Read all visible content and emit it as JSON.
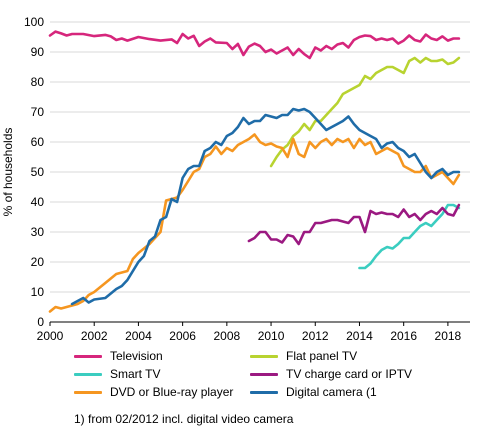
{
  "chart_data": {
    "type": "line",
    "ylabel": "% of households",
    "xlim": [
      2000,
      2019
    ],
    "ylim": [
      0,
      100
    ],
    "x_ticks": [
      2000,
      2002,
      2004,
      2006,
      2008,
      2010,
      2012,
      2014,
      2016,
      2018
    ],
    "y_ticks": [
      0,
      10,
      20,
      30,
      40,
      50,
      60,
      70,
      80,
      90,
      100
    ],
    "grid": "horizontal",
    "legend_position": "bottom",
    "footnote": "1) from 02/2012 incl. digital video camera",
    "series": [
      {
        "name": "Television",
        "color": "#d6267c",
        "points": [
          [
            2000,
            95.5
          ],
          [
            2000.25,
            96.8
          ],
          [
            2000.5,
            96.2
          ],
          [
            2000.75,
            95.5
          ],
          [
            2001,
            96
          ],
          [
            2001.5,
            96
          ],
          [
            2002,
            95.3
          ],
          [
            2002.5,
            95.7
          ],
          [
            2002.75,
            95.2
          ],
          [
            2003,
            94
          ],
          [
            2003.25,
            94.5
          ],
          [
            2003.5,
            93.8
          ],
          [
            2004,
            95
          ],
          [
            2004.5,
            94.3
          ],
          [
            2005,
            93.8
          ],
          [
            2005.5,
            94.2
          ],
          [
            2005.75,
            93
          ],
          [
            2006,
            96
          ],
          [
            2006.25,
            94.5
          ],
          [
            2006.5,
            95.4
          ],
          [
            2006.75,
            92
          ],
          [
            2007,
            93.5
          ],
          [
            2007.25,
            94.5
          ],
          [
            2007.5,
            93.2
          ],
          [
            2008,
            93
          ],
          [
            2008.25,
            91
          ],
          [
            2008.5,
            92.7
          ],
          [
            2008.75,
            89
          ],
          [
            2009,
            91.8
          ],
          [
            2009.25,
            92.8
          ],
          [
            2009.5,
            92
          ],
          [
            2009.75,
            90
          ],
          [
            2010,
            90.8
          ],
          [
            2010.25,
            89.5
          ],
          [
            2010.5,
            90.5
          ],
          [
            2010.75,
            91.5
          ],
          [
            2011,
            89
          ],
          [
            2011.25,
            91
          ],
          [
            2011.5,
            89.3
          ],
          [
            2011.75,
            88
          ],
          [
            2012,
            91.5
          ],
          [
            2012.25,
            90.5
          ],
          [
            2012.5,
            92
          ],
          [
            2012.75,
            91
          ],
          [
            2013,
            92.5
          ],
          [
            2013.25,
            93
          ],
          [
            2013.5,
            91.5
          ],
          [
            2013.75,
            94
          ],
          [
            2014,
            95
          ],
          [
            2014.25,
            95.5
          ],
          [
            2014.5,
            95.3
          ],
          [
            2014.75,
            94
          ],
          [
            2015,
            94.5
          ],
          [
            2015.25,
            94
          ],
          [
            2015.5,
            94.5
          ],
          [
            2015.75,
            92.8
          ],
          [
            2016,
            93.8
          ],
          [
            2016.25,
            95.5
          ],
          [
            2016.5,
            94
          ],
          [
            2016.75,
            93.5
          ],
          [
            2017,
            95.8
          ],
          [
            2017.25,
            94.5
          ],
          [
            2017.5,
            94
          ],
          [
            2017.75,
            95.2
          ],
          [
            2018,
            93.8
          ],
          [
            2018.25,
            94.5
          ],
          [
            2018.5,
            94.5
          ]
        ]
      },
      {
        "name": "Flat panel TV",
        "color": "#b8d330",
        "points": [
          [
            2010,
            52
          ],
          [
            2010.25,
            55
          ],
          [
            2010.5,
            57.5
          ],
          [
            2010.75,
            59
          ],
          [
            2011,
            62
          ],
          [
            2011.25,
            63.5
          ],
          [
            2011.5,
            66
          ],
          [
            2011.75,
            64
          ],
          [
            2012,
            67
          ],
          [
            2012.25,
            67
          ],
          [
            2012.5,
            69
          ],
          [
            2012.75,
            71
          ],
          [
            2013,
            73
          ],
          [
            2013.25,
            76
          ],
          [
            2013.5,
            77
          ],
          [
            2013.75,
            78
          ],
          [
            2014,
            79
          ],
          [
            2014.25,
            82
          ],
          [
            2014.5,
            81
          ],
          [
            2014.75,
            83
          ],
          [
            2015,
            84
          ],
          [
            2015.25,
            85
          ],
          [
            2015.5,
            85
          ],
          [
            2015.75,
            84
          ],
          [
            2016,
            83
          ],
          [
            2016.25,
            87
          ],
          [
            2016.5,
            88
          ],
          [
            2016.75,
            86.5
          ],
          [
            2017,
            88
          ],
          [
            2017.25,
            87
          ],
          [
            2017.5,
            87
          ],
          [
            2017.75,
            87.5
          ],
          [
            2018,
            86
          ],
          [
            2018.25,
            86.5
          ],
          [
            2018.5,
            88
          ]
        ]
      },
      {
        "name": "Smart TV",
        "color": "#3bcdc0",
        "points": [
          [
            2014,
            18
          ],
          [
            2014.25,
            18
          ],
          [
            2014.5,
            19.5
          ],
          [
            2014.75,
            22
          ],
          [
            2015,
            24
          ],
          [
            2015.25,
            25
          ],
          [
            2015.5,
            24.5
          ],
          [
            2015.75,
            26
          ],
          [
            2016,
            28
          ],
          [
            2016.25,
            28
          ],
          [
            2016.5,
            30
          ],
          [
            2016.75,
            32
          ],
          [
            2017,
            33
          ],
          [
            2017.25,
            32
          ],
          [
            2017.5,
            34
          ],
          [
            2017.75,
            36
          ],
          [
            2018,
            39
          ],
          [
            2018.25,
            39
          ],
          [
            2018.5,
            38
          ]
        ]
      },
      {
        "name": "TV charge card or IPTV",
        "color": "#9b1981",
        "points": [
          [
            2009,
            27
          ],
          [
            2009.25,
            28
          ],
          [
            2009.5,
            30
          ],
          [
            2009.75,
            30
          ],
          [
            2010,
            27.5
          ],
          [
            2010.25,
            27.5
          ],
          [
            2010.5,
            26.5
          ],
          [
            2010.75,
            29
          ],
          [
            2011,
            28.5
          ],
          [
            2011.25,
            26
          ],
          [
            2011.5,
            30
          ],
          [
            2011.75,
            30
          ],
          [
            2012,
            33
          ],
          [
            2012.25,
            33
          ],
          [
            2012.5,
            33.5
          ],
          [
            2012.75,
            34
          ],
          [
            2013,
            34
          ],
          [
            2013.25,
            33.5
          ],
          [
            2013.5,
            33
          ],
          [
            2013.75,
            35
          ],
          [
            2014,
            35
          ],
          [
            2014.25,
            30
          ],
          [
            2014.5,
            37
          ],
          [
            2014.75,
            36
          ],
          [
            2015,
            36.5
          ],
          [
            2015.25,
            36
          ],
          [
            2015.5,
            36
          ],
          [
            2015.75,
            35
          ],
          [
            2016,
            37.5
          ],
          [
            2016.25,
            35
          ],
          [
            2016.5,
            36
          ],
          [
            2016.75,
            34
          ],
          [
            2017,
            36
          ],
          [
            2017.25,
            37
          ],
          [
            2017.5,
            36
          ],
          [
            2017.75,
            38
          ],
          [
            2018,
            36
          ],
          [
            2018.25,
            35.5
          ],
          [
            2018.5,
            39
          ]
        ]
      },
      {
        "name": "DVD or Blue-ray player",
        "color": "#f59620",
        "points": [
          [
            2000,
            3.5
          ],
          [
            2000.25,
            5
          ],
          [
            2000.5,
            4.5
          ],
          [
            2000.75,
            5
          ],
          [
            2001,
            5.5
          ],
          [
            2001.25,
            6
          ],
          [
            2001.5,
            7
          ],
          [
            2001.75,
            9
          ],
          [
            2002,
            10
          ],
          [
            2002.5,
            13
          ],
          [
            2003,
            16
          ],
          [
            2003.5,
            17
          ],
          [
            2003.75,
            21
          ],
          [
            2004,
            23
          ],
          [
            2004.5,
            26
          ],
          [
            2004.75,
            28
          ],
          [
            2005,
            30
          ],
          [
            2005.25,
            40.5
          ],
          [
            2005.5,
            41
          ],
          [
            2005.75,
            41.5
          ],
          [
            2006,
            44
          ],
          [
            2006.25,
            47
          ],
          [
            2006.5,
            50
          ],
          [
            2006.75,
            51
          ],
          [
            2007,
            55
          ],
          [
            2007.25,
            56
          ],
          [
            2007.5,
            58.5
          ],
          [
            2007.75,
            56
          ],
          [
            2008,
            58
          ],
          [
            2008.25,
            57
          ],
          [
            2008.5,
            59
          ],
          [
            2008.75,
            60
          ],
          [
            2009,
            61
          ],
          [
            2009.25,
            62.5
          ],
          [
            2009.5,
            60
          ],
          [
            2009.75,
            59
          ],
          [
            2010,
            59.5
          ],
          [
            2010.25,
            58.5
          ],
          [
            2010.5,
            58
          ],
          [
            2010.75,
            55
          ],
          [
            2011,
            61
          ],
          [
            2011.25,
            56
          ],
          [
            2011.5,
            55
          ],
          [
            2011.75,
            60
          ],
          [
            2012,
            58
          ],
          [
            2012.25,
            60
          ],
          [
            2012.5,
            61
          ],
          [
            2012.75,
            59
          ],
          [
            2013,
            61
          ],
          [
            2013.25,
            60
          ],
          [
            2013.5,
            61
          ],
          [
            2013.75,
            58
          ],
          [
            2014,
            61
          ],
          [
            2014.25,
            59
          ],
          [
            2014.5,
            60
          ],
          [
            2014.75,
            56
          ],
          [
            2015,
            57
          ],
          [
            2015.25,
            58
          ],
          [
            2015.5,
            57
          ],
          [
            2015.75,
            56
          ],
          [
            2016,
            52
          ],
          [
            2016.25,
            51
          ],
          [
            2016.5,
            50
          ],
          [
            2016.75,
            50
          ],
          [
            2017,
            52
          ],
          [
            2017.25,
            48
          ],
          [
            2017.5,
            49
          ],
          [
            2017.75,
            50
          ],
          [
            2018,
            48
          ],
          [
            2018.25,
            46
          ],
          [
            2018.5,
            49
          ]
        ]
      },
      {
        "name": "Digital camera (1",
        "color": "#1f6ca8",
        "points": [
          [
            2001,
            6
          ],
          [
            2001.25,
            7
          ],
          [
            2001.5,
            8
          ],
          [
            2001.75,
            6.5
          ],
          [
            2002,
            7.5
          ],
          [
            2002.5,
            8
          ],
          [
            2003,
            11
          ],
          [
            2003.25,
            12
          ],
          [
            2003.5,
            14
          ],
          [
            2004,
            20
          ],
          [
            2004.25,
            22
          ],
          [
            2004.5,
            27
          ],
          [
            2004.75,
            28.5
          ],
          [
            2005,
            34
          ],
          [
            2005.25,
            35
          ],
          [
            2005.5,
            41
          ],
          [
            2005.75,
            40
          ],
          [
            2006,
            48
          ],
          [
            2006.25,
            51
          ],
          [
            2006.5,
            52
          ],
          [
            2006.75,
            52
          ],
          [
            2007,
            57
          ],
          [
            2007.25,
            58
          ],
          [
            2007.5,
            60
          ],
          [
            2007.75,
            59
          ],
          [
            2008,
            62
          ],
          [
            2008.25,
            63
          ],
          [
            2008.5,
            65
          ],
          [
            2008.75,
            68
          ],
          [
            2009,
            66
          ],
          [
            2009.25,
            67
          ],
          [
            2009.5,
            67
          ],
          [
            2009.75,
            69
          ],
          [
            2010,
            68.5
          ],
          [
            2010.25,
            68
          ],
          [
            2010.5,
            69
          ],
          [
            2010.75,
            69
          ],
          [
            2011,
            71
          ],
          [
            2011.25,
            70.5
          ],
          [
            2011.5,
            71
          ],
          [
            2011.75,
            70
          ],
          [
            2012,
            68
          ],
          [
            2012.25,
            66
          ],
          [
            2012.5,
            64
          ],
          [
            2012.75,
            65
          ],
          [
            2013,
            66
          ],
          [
            2013.25,
            67
          ],
          [
            2013.5,
            68.5
          ],
          [
            2013.75,
            66
          ],
          [
            2014,
            64
          ],
          [
            2014.25,
            63
          ],
          [
            2014.5,
            62
          ],
          [
            2014.75,
            61
          ],
          [
            2015,
            58
          ],
          [
            2015.25,
            59.5
          ],
          [
            2015.5,
            60
          ],
          [
            2015.75,
            58
          ],
          [
            2016,
            57
          ],
          [
            2016.25,
            55
          ],
          [
            2016.5,
            56
          ],
          [
            2016.75,
            53
          ],
          [
            2017,
            50
          ],
          [
            2017.25,
            48
          ],
          [
            2017.5,
            50
          ],
          [
            2017.75,
            51
          ],
          [
            2018,
            49
          ],
          [
            2018.25,
            50
          ],
          [
            2018.5,
            50
          ]
        ]
      }
    ]
  }
}
